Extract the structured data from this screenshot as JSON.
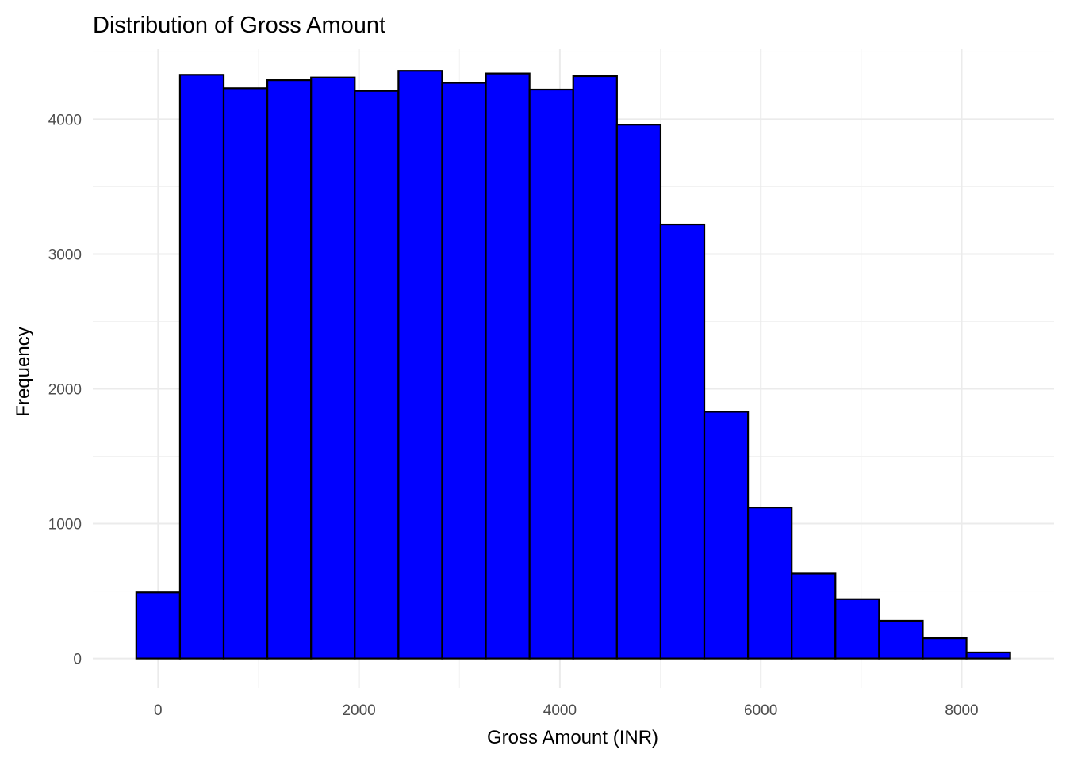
{
  "chart_data": {
    "type": "bar",
    "title": "Distribution of Gross Amount",
    "xlabel": "Gross Amount (INR)",
    "ylabel": "Frequency",
    "bin_width": 435,
    "bins": [
      {
        "x_start": -217,
        "x_end": 218,
        "count": 490
      },
      {
        "x_start": 218,
        "x_end": 653,
        "count": 4330
      },
      {
        "x_start": 653,
        "x_end": 1088,
        "count": 4230
      },
      {
        "x_start": 1088,
        "x_end": 1523,
        "count": 4290
      },
      {
        "x_start": 1523,
        "x_end": 1958,
        "count": 4310
      },
      {
        "x_start": 1958,
        "x_end": 2393,
        "count": 4210
      },
      {
        "x_start": 2393,
        "x_end": 2828,
        "count": 4360
      },
      {
        "x_start": 2828,
        "x_end": 3263,
        "count": 4270
      },
      {
        "x_start": 3263,
        "x_end": 3698,
        "count": 4340
      },
      {
        "x_start": 3698,
        "x_end": 4133,
        "count": 4220
      },
      {
        "x_start": 4133,
        "x_end": 4568,
        "count": 4320
      },
      {
        "x_start": 4568,
        "x_end": 5003,
        "count": 3960
      },
      {
        "x_start": 5003,
        "x_end": 5438,
        "count": 3220
      },
      {
        "x_start": 5438,
        "x_end": 5873,
        "count": 1830
      },
      {
        "x_start": 5873,
        "x_end": 6308,
        "count": 1120
      },
      {
        "x_start": 6308,
        "x_end": 6743,
        "count": 630
      },
      {
        "x_start": 6743,
        "x_end": 7178,
        "count": 440
      },
      {
        "x_start": 7178,
        "x_end": 7613,
        "count": 280
      },
      {
        "x_start": 7613,
        "x_end": 8048,
        "count": 150
      },
      {
        "x_start": 8048,
        "x_end": 8483,
        "count": 45
      }
    ],
    "x_ticks": [
      0,
      2000,
      4000,
      6000,
      8000
    ],
    "y_ticks": [
      0,
      1000,
      2000,
      3000,
      4000
    ],
    "xlim": [
      -650,
      8920
    ],
    "ylim": [
      -220,
      4520
    ],
    "grid": true,
    "legend": "none",
    "colors": {
      "bar_fill": "#0000FF",
      "bar_outline": "#000000",
      "grid_major": "#EBEBEB",
      "grid_minor": "#F2F2F2",
      "tick_text": "#4D4D4D"
    }
  }
}
